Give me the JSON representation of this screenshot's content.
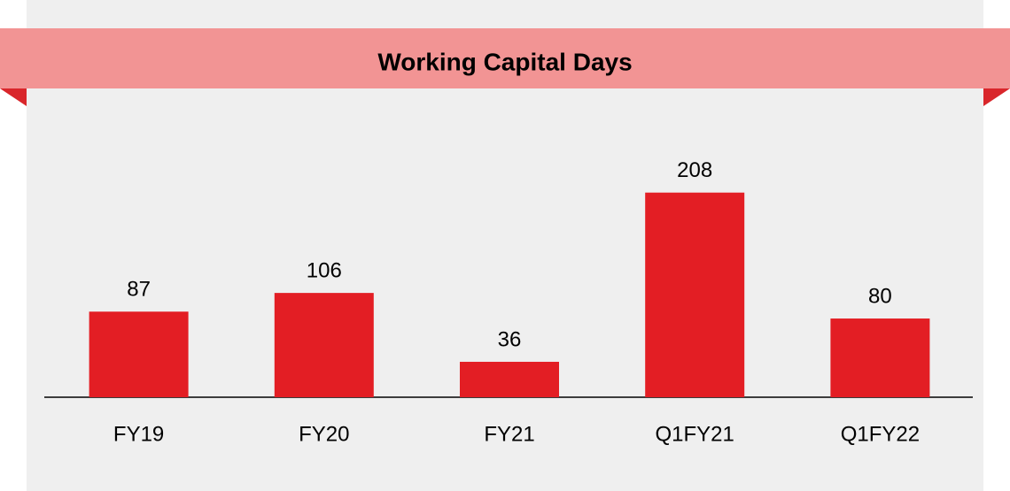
{
  "chart_data": {
    "type": "bar",
    "title": "Working Capital Days",
    "categories": [
      "FY19",
      "FY20",
      "FY21",
      "Q1FY21",
      "Q1FY22"
    ],
    "values": [
      87,
      106,
      36,
      208,
      80
    ],
    "color": "#e31e24",
    "ylim": [
      0,
      250
    ]
  }
}
